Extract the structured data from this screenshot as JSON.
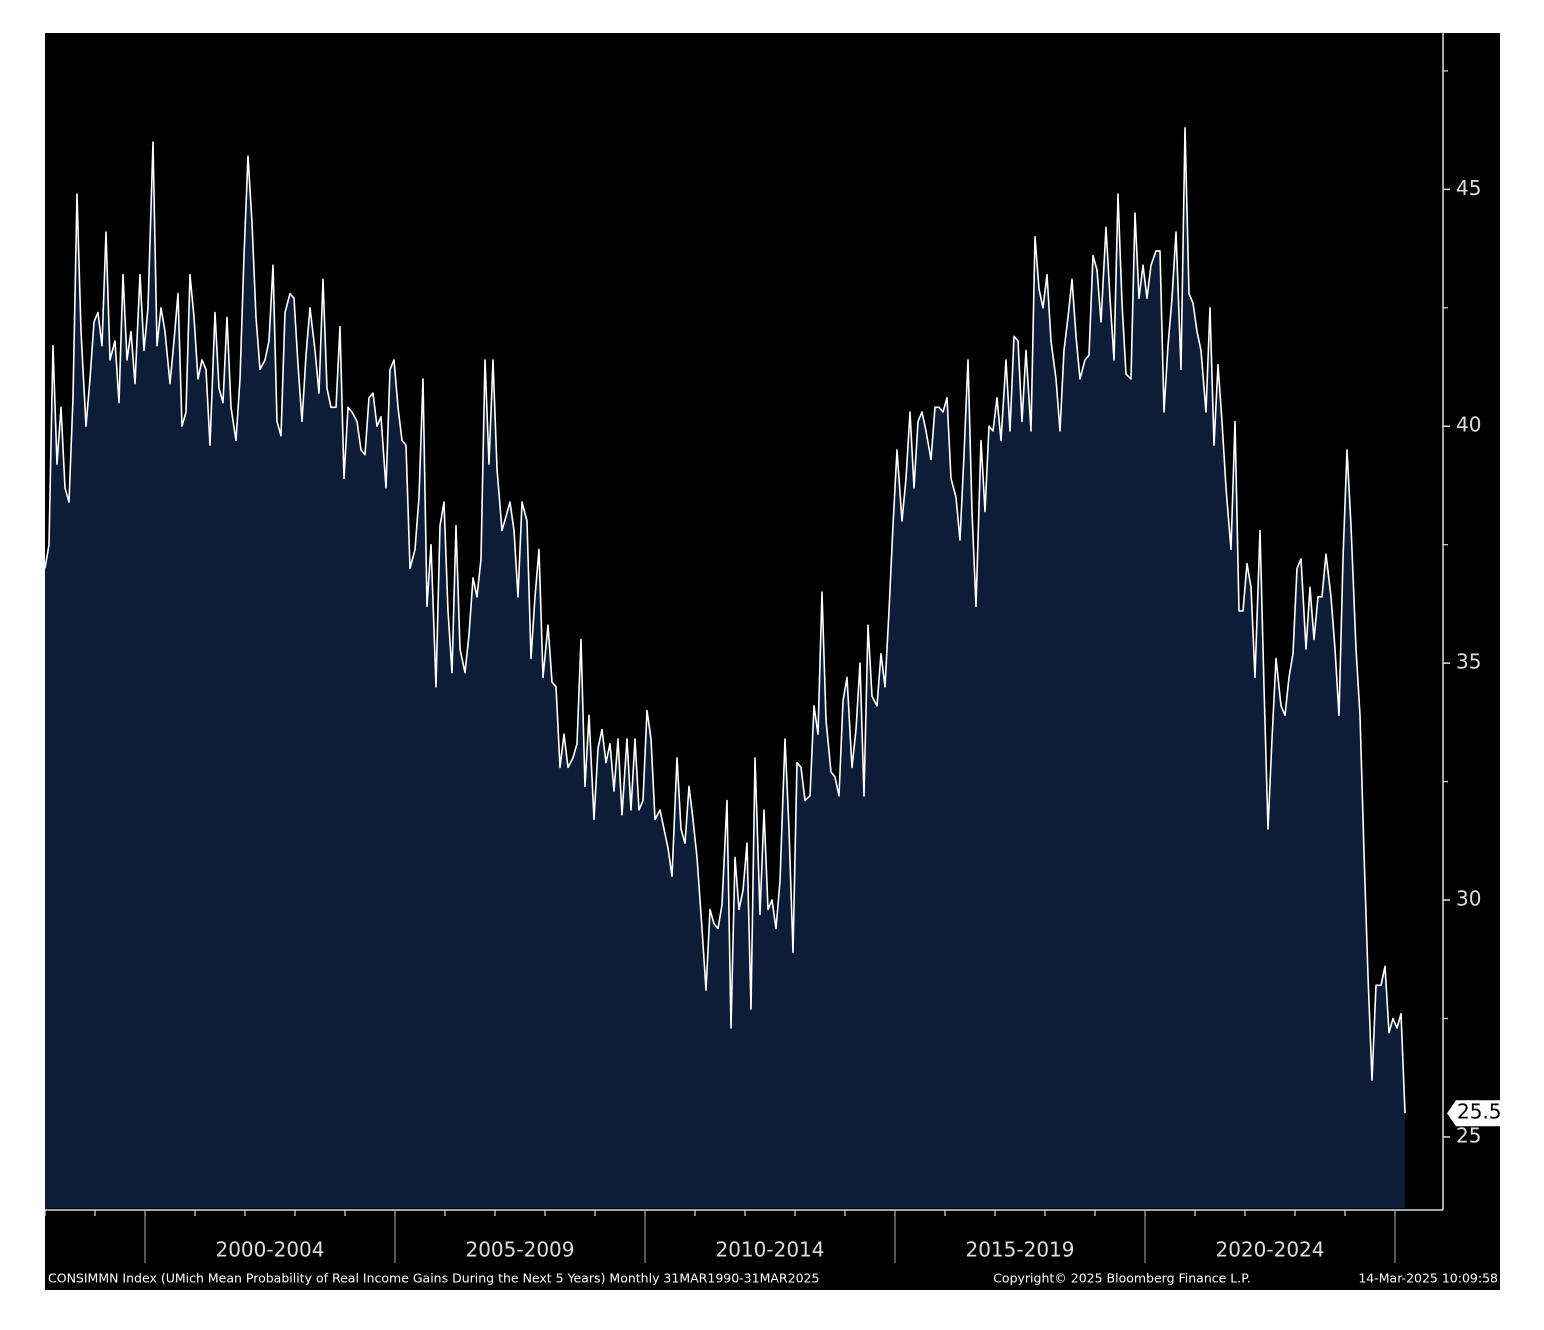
{
  "chart_data": {
    "type": "area",
    "description": "CONSIMMN Index (UMich Mean Probability of Real Income Gains During the Next 5 Years)  Monthly 31MAR1990-31MAR2025",
    "copyright": "Copyright© 2025 Bloomberg Finance L.P.",
    "timestamp": "14-Mar-2025 10:09:58",
    "x": [
      1998.0,
      1998.08,
      1998.16,
      1998.24,
      1998.32,
      1998.4,
      1998.48,
      1998.56,
      1998.64,
      1998.72,
      1998.82,
      1998.9,
      1998.98,
      1999.06,
      1999.14,
      1999.22,
      1999.3,
      1999.4,
      1999.48,
      1999.56,
      1999.64,
      1999.72,
      1999.8,
      1999.9,
      1999.98,
      2000.06,
      2000.16,
      2000.24,
      2000.32,
      2000.4,
      2000.5,
      2000.58,
      2000.66,
      2000.74,
      2000.82,
      2000.9,
      2000.98,
      2001.06,
      2001.14,
      2001.22,
      2001.3,
      2001.4,
      2001.48,
      2001.56,
      2001.64,
      2001.72,
      2001.82,
      2001.9,
      2001.98,
      2002.06,
      2002.14,
      2002.22,
      2002.3,
      2002.4,
      2002.48,
      2002.56,
      2002.64,
      2002.72,
      2002.8,
      2002.9,
      2002.98,
      2003.06,
      2003.14,
      2003.22,
      2003.3,
      2003.4,
      2003.48,
      2003.56,
      2003.64,
      2003.72,
      2003.82,
      2003.9,
      2003.98,
      2004.06,
      2004.14,
      2004.24,
      2004.32,
      2004.4,
      2004.48,
      2004.56,
      2004.64,
      2004.72,
      2004.82,
      2004.9,
      2004.98,
      2005.06,
      2005.14,
      2005.22,
      2005.3,
      2005.4,
      2005.48,
      2005.56,
      2005.64,
      2005.72,
      2005.82,
      2005.9,
      2005.98,
      2006.06,
      2006.14,
      2006.22,
      2006.3,
      2006.4,
      2006.48,
      2006.56,
      2006.64,
      2006.72,
      2006.8,
      2006.88,
      2006.96,
      2007.04,
      2007.14,
      2007.22,
      2007.3,
      2007.38,
      2007.46,
      2007.54,
      2007.64,
      2007.72,
      2007.8,
      2007.88,
      2007.96,
      2008.06,
      2008.14,
      2008.22,
      2008.3,
      2008.38,
      2008.46,
      2008.56,
      2008.64,
      2008.72,
      2008.8,
      2008.88,
      2008.98,
      2009.06,
      2009.14,
      2009.22,
      2009.3,
      2009.38,
      2009.46,
      2009.54,
      2009.64,
      2009.72,
      2009.8,
      2009.88,
      2009.96,
      2010.04,
      2010.12,
      2010.2,
      2010.3,
      2010.38,
      2010.46,
      2010.54,
      2010.64,
      2010.72,
      2010.8,
      2010.88,
      2010.96,
      2011.04,
      2011.14,
      2011.22,
      2011.3,
      2011.38,
      2011.46,
      2011.54,
      2011.64,
      2011.72,
      2011.8,
      2011.88,
      2011.96,
      2012.04,
      2012.12,
      2012.2,
      2012.3,
      2012.38,
      2012.46,
      2012.54,
      2012.62,
      2012.7,
      2012.8,
      2012.88,
      2012.96,
      2013.04,
      2013.12,
      2013.2,
      2013.3,
      2013.38,
      2013.46,
      2013.54,
      2013.62,
      2013.72,
      2013.8,
      2013.88,
      2013.96,
      2014.04,
      2014.14,
      2014.22,
      2014.3,
      2014.38,
      2014.46,
      2014.54,
      2014.64,
      2014.72,
      2014.8,
      2014.88,
      2014.96,
      2015.04,
      2015.14,
      2015.22,
      2015.3,
      2015.38,
      2015.46,
      2015.54,
      2015.62,
      2015.72,
      2015.8,
      2015.88,
      2015.96,
      2016.04,
      2016.12,
      2016.22,
      2016.3,
      2016.38,
      2016.46,
      2016.54,
      2016.62,
      2016.72,
      2016.8,
      2016.88,
      2016.96,
      2017.04,
      2017.12,
      2017.22,
      2017.3,
      2017.38,
      2017.46,
      2017.54,
      2017.62,
      2017.72,
      2017.8,
      2017.88,
      2017.96,
      2018.04,
      2018.12,
      2018.22,
      2018.3,
      2018.38,
      2018.46,
      2018.54,
      2018.62,
      2018.7,
      2018.8,
      2018.88,
      2018.96,
      2019.04,
      2019.12,
      2019.22,
      2019.3,
      2019.38,
      2019.46,
      2019.54,
      2019.62,
      2019.72,
      2019.8,
      2019.88,
      2019.96,
      2020.04,
      2020.12,
      2020.22,
      2020.3,
      2020.38,
      2020.46,
      2020.54,
      2020.62,
      2020.72,
      2020.8,
      2020.88,
      2020.96,
      2021.04,
      2021.12,
      2021.22,
      2021.3,
      2021.38,
      2021.46,
      2021.54,
      2021.62,
      2021.72,
      2021.8,
      2021.88,
      2021.96,
      2022.04,
      2022.12,
      2022.2,
      2022.3,
      2022.38,
      2022.46,
      2022.54,
      2022.62,
      2022.72,
      2022.8,
      2022.88,
      2022.96,
      2023.04,
      2023.12,
      2023.22,
      2023.3,
      2023.38,
      2023.46,
      2023.54,
      2023.62,
      2023.72,
      2023.8,
      2023.88,
      2023.96,
      2024.04,
      2024.12,
      2024.22,
      2024.3,
      2024.38,
      2024.46,
      2024.54,
      2024.62,
      2024.72,
      2024.8,
      2024.88,
      2024.96,
      2025.04,
      2025.12,
      2025.2
    ],
    "values": [
      37.0,
      37.5,
      41.7,
      39.2,
      40.4,
      38.7,
      38.4,
      40.6,
      44.9,
      42.0,
      40.0,
      41.0,
      42.2,
      42.4,
      41.7,
      44.1,
      41.4,
      41.8,
      40.5,
      43.2,
      41.4,
      42.0,
      40.9,
      43.2,
      41.6,
      42.5,
      46.0,
      41.7,
      42.5,
      42.0,
      40.9,
      41.8,
      42.8,
      40.0,
      40.3,
      43.2,
      42.3,
      41.0,
      41.4,
      41.2,
      39.6,
      42.4,
      40.8,
      40.5,
      42.3,
      40.4,
      39.7,
      41.0,
      43.6,
      45.7,
      44.3,
      42.3,
      41.2,
      41.4,
      41.8,
      43.4,
      40.1,
      39.8,
      42.4,
      42.8,
      42.7,
      41.3,
      40.1,
      41.5,
      42.5,
      41.6,
      40.7,
      43.1,
      40.8,
      40.4,
      40.4,
      42.1,
      38.9,
      40.4,
      40.3,
      40.1,
      39.5,
      39.4,
      40.6,
      40.7,
      40.0,
      40.2,
      38.7,
      41.2,
      41.4,
      40.4,
      39.7,
      39.6,
      37.0,
      37.4,
      38.5,
      41.0,
      36.2,
      37.5,
      34.5,
      37.9,
      38.4,
      36.1,
      34.8,
      37.9,
      35.3,
      34.8,
      35.6,
      36.8,
      36.4,
      37.2,
      41.4,
      39.2,
      41.4,
      39.1,
      37.8,
      38.1,
      38.4,
      37.8,
      36.4,
      38.4,
      38.0,
      35.1,
      36.4,
      37.4,
      34.7,
      35.8,
      34.6,
      34.5,
      32.8,
      33.5,
      32.8,
      33.0,
      33.3,
      35.5,
      32.4,
      33.9,
      31.7,
      33.2,
      33.6,
      32.9,
      33.3,
      32.3,
      33.4,
      31.8,
      33.4,
      31.9,
      33.4,
      31.9,
      32.1,
      34.0,
      33.4,
      31.7,
      31.9,
      31.5,
      31.1,
      30.5,
      33.0,
      31.5,
      31.2,
      32.4,
      31.7,
      30.9,
      29.4,
      28.1,
      29.8,
      29.5,
      29.4,
      29.9,
      32.1,
      27.3,
      30.9,
      29.8,
      30.2,
      31.2,
      27.7,
      33.0,
      29.7,
      31.9,
      29.8,
      30.0,
      29.4,
      30.4,
      33.4,
      31.5,
      28.9,
      32.9,
      32.8,
      32.1,
      32.2,
      34.1,
      33.5,
      36.5,
      33.8,
      32.7,
      32.6,
      32.2,
      34.2,
      34.7,
      32.8,
      33.6,
      35.0,
      32.2,
      35.8,
      34.3,
      34.1,
      35.2,
      34.5,
      36.1,
      37.9,
      39.5,
      38.0,
      38.9,
      40.3,
      38.7,
      40.1,
      40.3,
      39.9,
      39.3,
      40.4,
      40.4,
      40.3,
      40.6,
      38.9,
      38.5,
      37.6,
      39.4,
      41.4,
      38.2,
      36.2,
      39.7,
      38.2,
      40.0,
      39.9,
      40.6,
      39.7,
      41.4,
      39.9,
      41.9,
      41.8,
      40.1,
      41.6,
      39.9,
      44.0,
      42.9,
      42.5,
      43.2,
      41.8,
      41.0,
      39.9,
      41.6,
      42.3,
      43.1,
      41.9,
      41.0,
      41.4,
      41.5,
      43.6,
      43.3,
      42.2,
      44.2,
      42.7,
      41.4,
      44.9,
      42.6,
      41.1,
      41.0,
      44.5,
      42.7,
      43.4,
      42.7,
      43.4,
      43.7,
      43.7,
      40.3,
      41.7,
      42.7,
      44.1,
      41.2,
      46.3,
      42.8,
      42.6,
      42.0,
      41.6,
      40.3,
      42.5,
      39.6,
      41.3,
      40.1,
      38.7,
      37.4,
      40.1,
      36.1,
      36.1,
      37.1,
      36.6,
      34.7,
      37.8,
      34.5,
      31.5,
      33.4,
      35.1,
      34.1,
      33.9,
      34.7,
      35.2,
      37.0,
      37.2,
      35.3,
      36.6,
      35.5,
      36.4,
      36.4,
      37.3,
      36.4,
      35.3,
      33.9,
      37.2,
      39.5,
      37.9,
      35.3,
      33.9,
      31.0,
      28.4,
      26.2,
      28.2,
      28.2,
      28.6,
      27.2,
      27.5,
      27.3,
      27.6,
      25.5
    ],
    "color": "#0d1d38",
    "line_color": "#ffffff",
    "xlim": [
      1998,
      2025.96
    ],
    "xticks": [
      {
        "value": 2002.5,
        "label": "2000-2004"
      },
      {
        "value": 2007.5,
        "label": "2005-2009"
      },
      {
        "value": 2012.5,
        "label": "2010-2014"
      },
      {
        "value": 2017.5,
        "label": "2015-2019"
      },
      {
        "value": 2022.5,
        "label": "2020-2024"
      }
    ],
    "ylim": [
      23.5,
      48.3
    ],
    "yticks": [
      25,
      30,
      35,
      40,
      45
    ],
    "last_value_label": true
  }
}
